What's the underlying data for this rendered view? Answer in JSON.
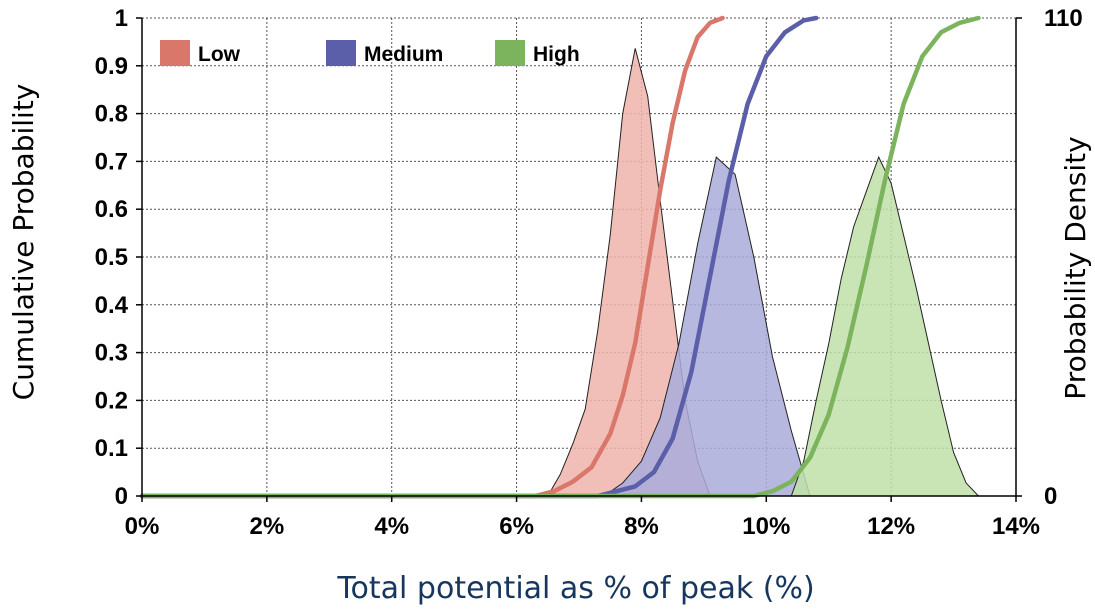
{
  "chart_data": {
    "type": "line",
    "title": "",
    "xlabel": "Total potential as % of peak (%)",
    "ylabel": "Cumulative Probability",
    "y2label": "Probability Density",
    "xlim": [
      0,
      14
    ],
    "ylim": [
      0,
      1
    ],
    "y2lim": [
      0,
      110
    ],
    "grid": true,
    "legend_position": "top-left",
    "x_ticks": [
      "0%",
      "2%",
      "4%",
      "6%",
      "8%",
      "10%",
      "12%",
      "14%"
    ],
    "y_ticks": [
      "0",
      "0.1",
      "0.2",
      "0.3",
      "0.4",
      "0.5",
      "0.6",
      "0.7",
      "0.8",
      "0.9",
      "1"
    ],
    "y2_ticks": [
      "0",
      "110"
    ],
    "series": [
      {
        "name": "Low",
        "color": "#d9776b",
        "fill_color": "#f0b4ab",
        "cdf": {
          "x": [
            0,
            6.3,
            6.6,
            6.9,
            7.2,
            7.5,
            7.7,
            7.9,
            8.1,
            8.3,
            8.5,
            8.7,
            8.9,
            9.1,
            9.3
          ],
          "y": [
            0,
            0,
            0.01,
            0.03,
            0.06,
            0.13,
            0.21,
            0.32,
            0.48,
            0.64,
            0.78,
            0.89,
            0.96,
            0.99,
            1.0
          ]
        },
        "density": {
          "x": [
            6.5,
            6.7,
            6.9,
            7.1,
            7.3,
            7.5,
            7.7,
            7.9,
            8.1,
            8.3,
            8.5,
            8.7,
            8.9,
            9.1
          ],
          "y": [
            0,
            5,
            12,
            20,
            38,
            60,
            88,
            103,
            92,
            68,
            45,
            22,
            8,
            0
          ]
        }
      },
      {
        "name": "Medium",
        "color": "#5b5ea8",
        "fill_color": "#a9abdb",
        "cdf": {
          "x": [
            0,
            7.3,
            7.6,
            7.9,
            8.2,
            8.5,
            8.8,
            9.1,
            9.4,
            9.7,
            10.0,
            10.3,
            10.6,
            10.8
          ],
          "y": [
            0,
            0,
            0.01,
            0.02,
            0.05,
            0.12,
            0.26,
            0.46,
            0.66,
            0.82,
            0.92,
            0.97,
            0.995,
            1.0
          ]
        },
        "density": {
          "x": [
            7.4,
            7.7,
            8.0,
            8.3,
            8.6,
            8.9,
            9.2,
            9.5,
            9.8,
            10.1,
            10.4,
            10.7
          ],
          "y": [
            0,
            3,
            8,
            18,
            35,
            58,
            78,
            74,
            55,
            32,
            15,
            0
          ]
        }
      },
      {
        "name": "High",
        "color": "#7cb35d",
        "fill_color": "#bfe0a8",
        "cdf": {
          "x": [
            0,
            9.8,
            10.1,
            10.4,
            10.7,
            11.0,
            11.3,
            11.6,
            11.9,
            12.2,
            12.5,
            12.8,
            13.1,
            13.4
          ],
          "y": [
            0,
            0,
            0.01,
            0.03,
            0.08,
            0.17,
            0.31,
            0.48,
            0.66,
            0.82,
            0.92,
            0.97,
            0.99,
            1.0
          ]
        },
        "density": {
          "x": [
            10.4,
            10.6,
            10.8,
            11.0,
            11.2,
            11.4,
            11.6,
            11.8,
            12.0,
            12.2,
            12.4,
            12.6,
            12.8,
            13.0,
            13.2,
            13.4
          ],
          "y": [
            0,
            8,
            22,
            35,
            50,
            62,
            70,
            78,
            72,
            60,
            48,
            35,
            22,
            10,
            3,
            0
          ]
        }
      }
    ]
  }
}
